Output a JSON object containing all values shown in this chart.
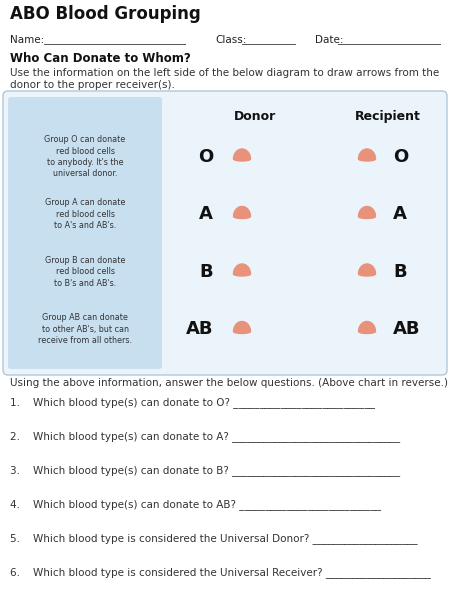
{
  "title": "ABO Blood Grouping",
  "name_label": "Name:",
  "class_label": "Class:",
  "date_label": "Date:",
  "who_can_donate": "Who Can Donate to Whom?",
  "instruction": "Use the information on the left side of the below diagram to draw arrows from the donor to the proper receiver(s).",
  "donor_label": "Donor",
  "recipient_label": "Recipient",
  "blood_types": [
    "O",
    "A",
    "B",
    "AB"
  ],
  "left_texts": [
    "Group O can donate\nred blood cells\nto anybody. It's the\nuniversal donor.",
    "Group A can donate\nred blood cells\nto A's and AB's.",
    "Group B can donate\nred blood cells\nto B's and AB's.",
    "Group AB can donate\nto other AB's, but can\nreceive from all others."
  ],
  "below_instruction": "Using the above information, answer the below questions. (Above chart in reverse.)",
  "questions": [
    "1.    Which blood type(s) can donate to O? ___________________________",
    "2.    Which blood type(s) can donate to A? ________________________________",
    "3.    Which blood type(s) can donate to B? ________________________________",
    "4.    Which blood type(s) can donate to AB? ___________________________",
    "5.    Which blood type is considered the Universal Donor? ____________________",
    "6.    Which blood type is considered the Universal Receiver? ____________________"
  ],
  "drop_color": "#E8927C",
  "left_panel_color": "#C8DFF0",
  "background": "#FFFFFF",
  "box_edge_color": "#B0C8DC",
  "box_bg": "#EBF4FA"
}
